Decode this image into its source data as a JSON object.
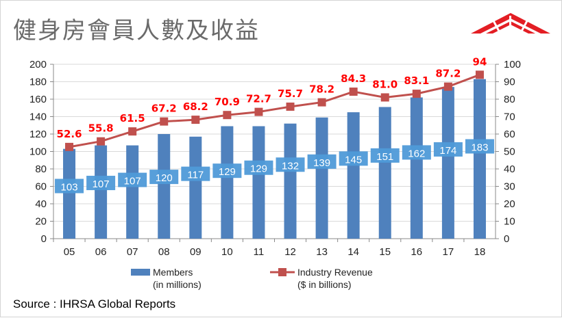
{
  "title": "健身房會員人數及收益",
  "source": "Source : IHRSA Global Reports",
  "legend": {
    "members_line1": "Members",
    "members_line2": "(in millions)",
    "revenue_line1": "Industry Revenue",
    "revenue_line2": "($ in billions)"
  },
  "colors": {
    "bar": "#4f81bd",
    "bar_label_bg": "#4f9ad8",
    "line": "#c0504d",
    "line_label": "#ff0000",
    "logo": "#e31e24"
  },
  "chart_data": {
    "type": "bar",
    "categories": [
      "05",
      "06",
      "07",
      "08",
      "09",
      "10",
      "11",
      "12",
      "13",
      "14",
      "15",
      "16",
      "17",
      "18"
    ],
    "series": [
      {
        "name": "Members (in millions)",
        "type": "bar",
        "axis": "left",
        "values": [
          103,
          107,
          107,
          120,
          117,
          129,
          129,
          132,
          139,
          145,
          151,
          162,
          174,
          183
        ],
        "labels": [
          "103",
          "107",
          "107",
          "120",
          "117",
          "129",
          "129",
          "132",
          "139",
          "145",
          "151",
          "162",
          "174",
          "183"
        ]
      },
      {
        "name": "Industry Revenue ($ in billions)",
        "type": "line",
        "axis": "right",
        "values": [
          52.6,
          55.8,
          61.5,
          67.2,
          68.2,
          70.9,
          72.7,
          75.7,
          78.2,
          84.3,
          81.0,
          83.1,
          87.2,
          94
        ],
        "labels": [
          "52.6",
          "55.8",
          "61.5",
          "67.2",
          "68.2",
          "70.9",
          "72.7",
          "75.7",
          "78.2",
          "84.3",
          "81.0",
          "83.1",
          "87.2",
          "94"
        ]
      }
    ],
    "y_left": {
      "min": 0,
      "max": 200,
      "step": 20
    },
    "y_right": {
      "min": 0,
      "max": 100,
      "step": 10
    },
    "grid": true,
    "legend_position": "bottom"
  }
}
